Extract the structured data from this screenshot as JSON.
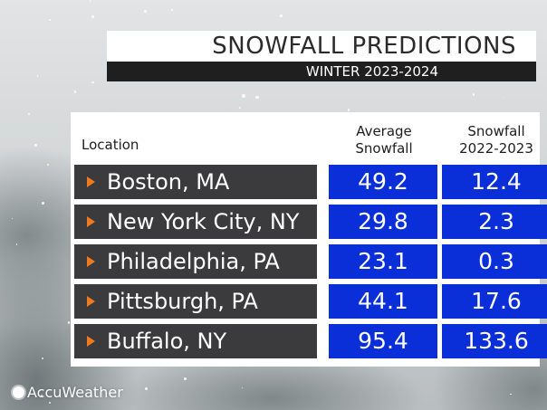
{
  "title": "SNOWFALL PREDICTIONS",
  "subtitle": "WINTER 2023-2024",
  "logo_text": "AccuWeather",
  "colors": {
    "location_cell": "#3b3b3d",
    "value_cell": "#0a2fd8",
    "arrow": "#f07a1e",
    "title_bar": "#1f1f1f"
  },
  "chart_data": {
    "type": "table",
    "columns": [
      "Location",
      "Average Snowfall",
      "Snowfall 2022-2023"
    ],
    "column_lines": {
      "location": [
        "Location"
      ],
      "average": [
        "Average",
        "Snowfall"
      ],
      "previous": [
        "Snowfall",
        "2022-2023"
      ]
    },
    "rows": [
      {
        "location": "Boston, MA",
        "average": "49.2",
        "previous": "12.4"
      },
      {
        "location": "New York City, NY",
        "average": "29.8",
        "previous": "2.3"
      },
      {
        "location": "Philadelphia, PA",
        "average": "23.1",
        "previous": "0.3"
      },
      {
        "location": "Pittsburgh, PA",
        "average": "44.1",
        "previous": "17.6"
      },
      {
        "location": "Buffalo, NY",
        "average": "95.4",
        "previous": "133.6"
      }
    ]
  }
}
